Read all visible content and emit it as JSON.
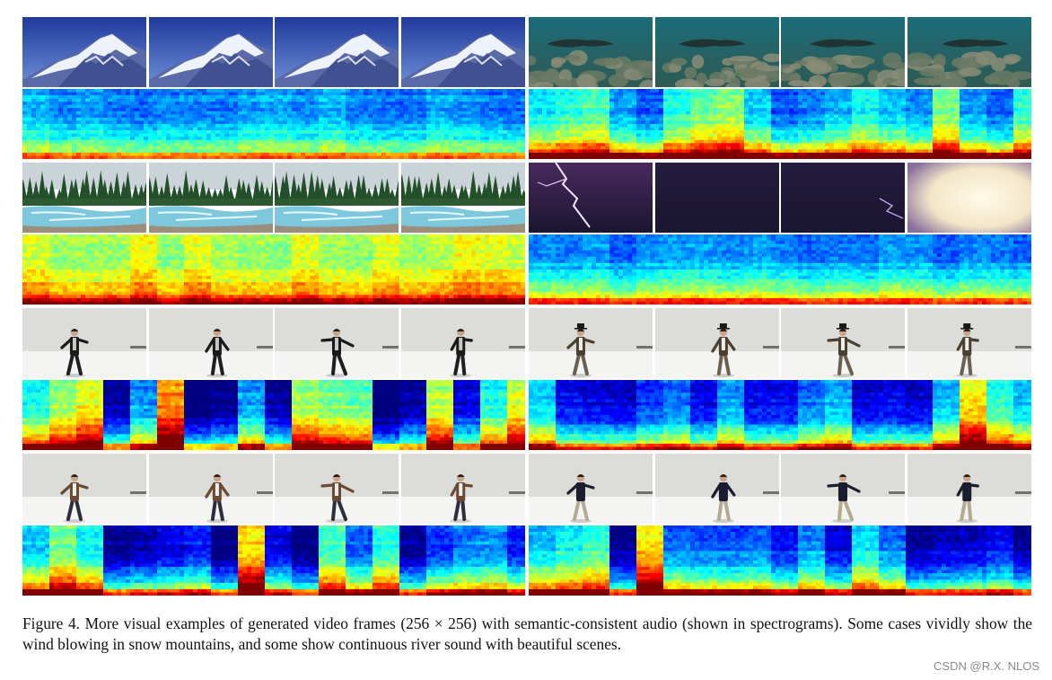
{
  "figure": {
    "caption_label": "Figure 4.",
    "caption_text": "More visual examples of generated video frames (256 × 256) with semantic-consistent audio (shown in spectrograms). Some cases vividly show the wind blowing in snow mountains, and some show continuous river sound with beautiful scenes."
  },
  "watermark": "CSDN @R.X. NLOS",
  "panels": [
    {
      "id": "snow-mountain",
      "scene": "snow-mountain",
      "col": 0,
      "row": 0
    },
    {
      "id": "underwater",
      "scene": "underwater",
      "col": 1,
      "row": 0
    },
    {
      "id": "river",
      "scene": "river",
      "col": 0,
      "row": 1
    },
    {
      "id": "lightning",
      "scene": "lightning",
      "col": 1,
      "row": 1
    },
    {
      "id": "dancer-black-jacket",
      "scene": "dancer-black",
      "col": 0,
      "row": 2
    },
    {
      "id": "dancer-hat-overalls",
      "scene": "dancer-hat",
      "col": 1,
      "row": 2
    },
    {
      "id": "dancer-brown-jacket",
      "scene": "dancer-brown",
      "col": 0,
      "row": 3
    },
    {
      "id": "dancer-dark-sweater",
      "scene": "dancer-sweater",
      "col": 1,
      "row": 3
    }
  ]
}
